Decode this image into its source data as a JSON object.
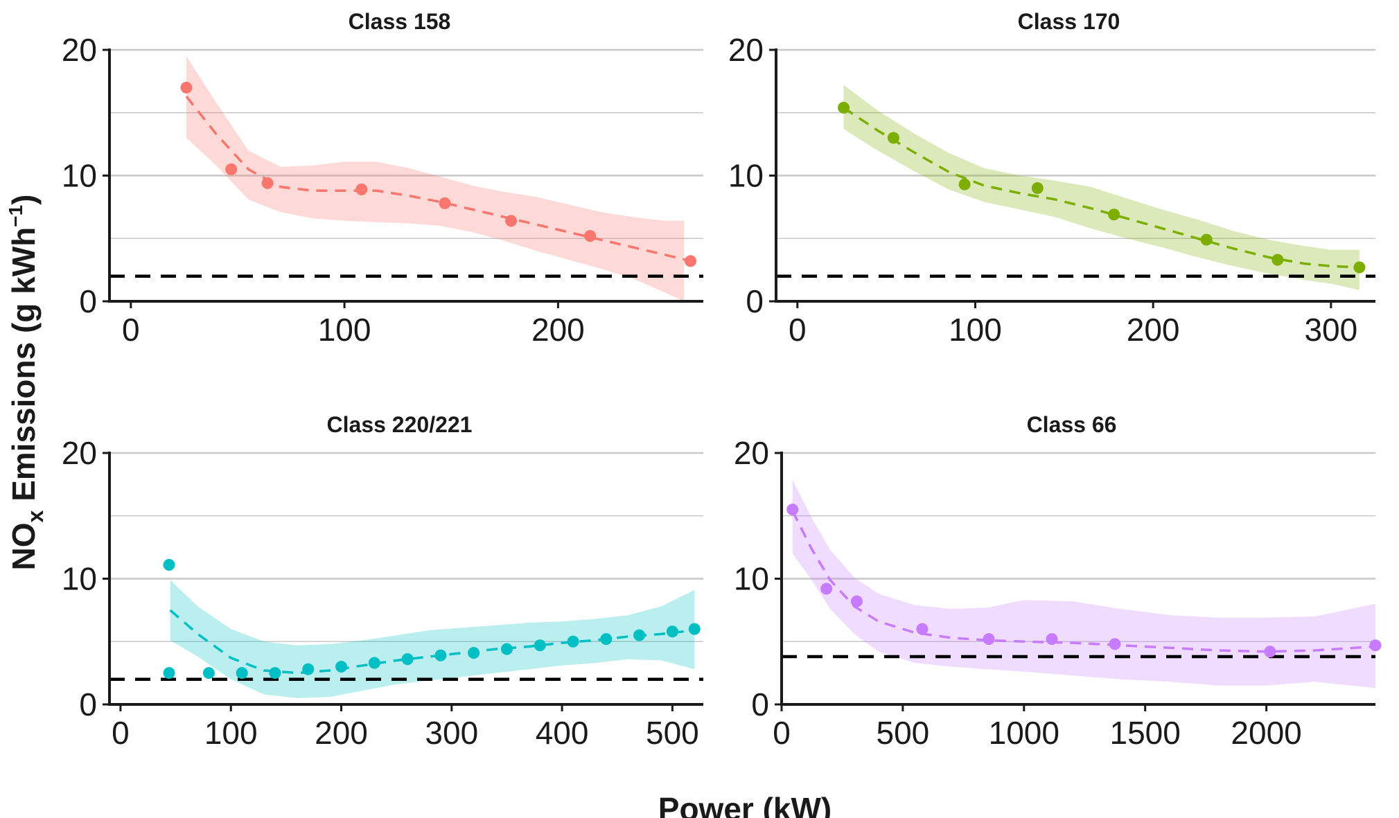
{
  "chart_data": [
    {
      "type": "scatter",
      "title": "Class 158",
      "color": "#F8766D",
      "xlim": [
        -10,
        268
      ],
      "ylim": [
        0,
        20
      ],
      "xticks": [
        0,
        100,
        200
      ],
      "yticks": [
        0,
        10,
        20
      ],
      "reference_line_y": 2,
      "points": {
        "x": [
          26,
          47,
          64,
          108,
          147,
          178,
          215,
          262
        ],
        "y": [
          17.0,
          10.5,
          9.4,
          8.9,
          7.8,
          6.4,
          5.2,
          3.2
        ]
      },
      "fit": {
        "x": [
          26,
          40,
          55,
          70,
          85,
          100,
          115,
          130,
          145,
          160,
          175,
          190,
          205,
          220,
          235,
          250,
          262
        ],
        "y": [
          16.3,
          13.3,
          10.5,
          9.1,
          8.8,
          8.8,
          8.8,
          8.4,
          7.9,
          7.3,
          6.7,
          6.1,
          5.5,
          4.9,
          4.3,
          3.7,
          3.2
        ]
      },
      "band": {
        "x": [
          26,
          40,
          55,
          70,
          85,
          100,
          115,
          130,
          145,
          160,
          175,
          190,
          205,
          220,
          235,
          250,
          259
        ],
        "upper": [
          19.5,
          15.8,
          12.0,
          10.7,
          10.8,
          11.1,
          11.1,
          10.6,
          9.9,
          9.2,
          8.7,
          8.3,
          7.7,
          7.1,
          6.7,
          6.4,
          6.4
        ],
        "lower": [
          13.0,
          10.8,
          8.1,
          7.1,
          6.6,
          6.4,
          6.3,
          6.2,
          6.0,
          5.5,
          4.8,
          4.0,
          3.3,
          2.6,
          1.8,
          0.7,
          0.0
        ]
      }
    },
    {
      "type": "scatter",
      "title": "Class 170",
      "color": "#7CAE00",
      "xlim": [
        -12,
        325
      ],
      "ylim": [
        0,
        20
      ],
      "xticks": [
        0,
        100,
        200,
        300
      ],
      "yticks": [
        0,
        10,
        20
      ],
      "reference_line_y": 2,
      "points": {
        "x": [
          26,
          54,
          94,
          135,
          178,
          230,
          270,
          316
        ],
        "y": [
          15.4,
          13.0,
          9.3,
          9.0,
          6.9,
          4.9,
          3.3,
          2.7
        ]
      },
      "fit": {
        "x": [
          26,
          45,
          65,
          85,
          105,
          125,
          145,
          165,
          185,
          205,
          225,
          245,
          265,
          285,
          300,
          316
        ],
        "y": [
          15.4,
          13.6,
          11.9,
          10.3,
          9.2,
          8.6,
          8.1,
          7.4,
          6.6,
          5.8,
          5.0,
          4.2,
          3.5,
          3.0,
          2.8,
          2.7
        ]
      },
      "band": {
        "x": [
          26,
          45,
          65,
          85,
          105,
          125,
          145,
          165,
          185,
          205,
          225,
          245,
          265,
          285,
          300,
          316
        ],
        "upper": [
          17.2,
          15.2,
          13.4,
          11.8,
          10.6,
          10.0,
          9.6,
          9.1,
          8.2,
          7.3,
          6.5,
          5.6,
          4.9,
          4.4,
          4.1,
          4.1
        ],
        "lower": [
          13.7,
          12.0,
          10.4,
          8.9,
          7.9,
          7.3,
          6.7,
          5.8,
          5.0,
          4.3,
          3.5,
          2.8,
          2.2,
          1.7,
          1.4,
          0.9
        ]
      }
    },
    {
      "type": "scatter",
      "title": "Class 220/221",
      "color": "#00BFC4",
      "xlim": [
        -10,
        528
      ],
      "ylim": [
        0,
        20
      ],
      "xticks": [
        0,
        100,
        200,
        300,
        400,
        500
      ],
      "yticks": [
        0,
        10,
        20
      ],
      "reference_line_y": 2,
      "points": {
        "x": [
          44,
          44,
          80,
          110,
          140,
          170,
          200,
          230,
          260,
          290,
          320,
          350,
          380,
          410,
          440,
          470,
          500,
          520
        ],
        "y": [
          11.1,
          2.5,
          2.5,
          2.5,
          2.5,
          2.8,
          3.0,
          3.3,
          3.6,
          3.9,
          4.1,
          4.4,
          4.7,
          5.0,
          5.2,
          5.5,
          5.8,
          6.0
        ]
      },
      "fit": {
        "x": [
          45,
          70,
          100,
          130,
          160,
          190,
          220,
          250,
          280,
          310,
          340,
          370,
          400,
          430,
          460,
          490,
          520
        ],
        "y": [
          7.5,
          5.6,
          3.7,
          2.7,
          2.5,
          2.7,
          3.1,
          3.5,
          3.8,
          4.1,
          4.4,
          4.6,
          4.9,
          5.1,
          5.4,
          5.6,
          5.9
        ]
      },
      "band": {
        "x": [
          45,
          70,
          100,
          130,
          160,
          190,
          220,
          250,
          280,
          310,
          340,
          370,
          400,
          430,
          460,
          490,
          520
        ],
        "upper": [
          9.9,
          7.8,
          6.0,
          5.0,
          4.7,
          4.8,
          5.1,
          5.5,
          5.9,
          6.1,
          6.3,
          6.5,
          6.6,
          6.8,
          7.1,
          7.8,
          9.1
        ],
        "lower": [
          5.1,
          3.8,
          2.0,
          0.8,
          0.5,
          0.6,
          1.1,
          1.6,
          1.9,
          2.2,
          2.5,
          2.8,
          3.1,
          3.3,
          3.6,
          3.5,
          2.8
        ]
      }
    },
    {
      "type": "scatter",
      "title": "Class 66",
      "color": "#C77CFF",
      "xlim": [
        0,
        2450
      ],
      "ylim": [
        0,
        20
      ],
      "xticks": [
        0,
        500,
        1000,
        1500,
        2000
      ],
      "yticks": [
        0,
        10,
        20
      ],
      "reference_line_y": 3.8,
      "points": {
        "x": [
          45,
          185,
          310,
          580,
          855,
          1115,
          1375,
          2015,
          2450
        ],
        "y": [
          15.5,
          9.2,
          8.2,
          6.0,
          5.2,
          5.2,
          4.8,
          4.2,
          4.7
        ]
      },
      "fit": {
        "x": [
          45,
          120,
          200,
          300,
          400,
          550,
          700,
          850,
          1000,
          1200,
          1400,
          1600,
          1800,
          2000,
          2200,
          2450
        ],
        "y": [
          15.4,
          12.5,
          9.9,
          7.8,
          6.6,
          5.7,
          5.3,
          5.1,
          5.0,
          4.9,
          4.7,
          4.5,
          4.3,
          4.2,
          4.3,
          4.6
        ]
      },
      "band": {
        "x": [
          45,
          120,
          200,
          300,
          400,
          550,
          700,
          850,
          1000,
          1200,
          1400,
          1600,
          1800,
          2000,
          2200,
          2450
        ],
        "upper": [
          17.9,
          15.0,
          12.3,
          10.1,
          8.8,
          7.9,
          7.6,
          7.7,
          8.3,
          8.2,
          7.6,
          7.1,
          6.9,
          6.9,
          7.0,
          8.0
        ],
        "lower": [
          12.0,
          10.0,
          7.6,
          5.6,
          4.2,
          3.3,
          3.0,
          2.8,
          2.6,
          2.3,
          2.0,
          1.8,
          1.5,
          1.5,
          1.8,
          1.3
        ]
      }
    }
  ],
  "axes": {
    "ylabel_main": "NO",
    "ylabel_sub": "x",
    "ylabel_rest": " Emissions (g kWh",
    "ylabel_sup": "−1",
    "ylabel_end": ")",
    "xlabel": "Power (kW)"
  }
}
